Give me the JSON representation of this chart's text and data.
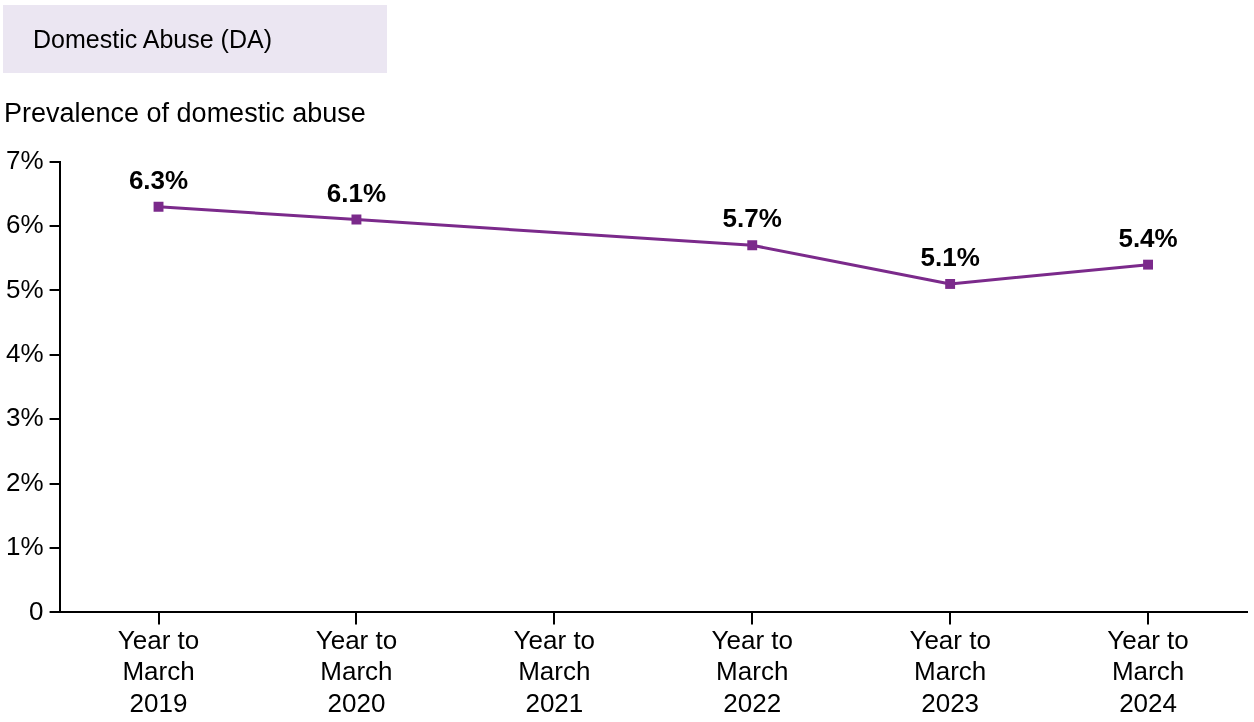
{
  "chart_data": {
    "type": "line",
    "title": "Domestic Abuse (DA)",
    "ylabel": "Prevalence of domestic abuse",
    "categories": [
      "Year to March 2019",
      "Year to March 2020",
      "Year to March 2021",
      "Year to March 2022",
      "Year to March 2023",
      "Year to March 2024"
    ],
    "series": [
      {
        "color": "#7b2a8b",
        "values": [
          6.3,
          6.1,
          null,
          5.7,
          5.1,
          5.4
        ],
        "value_labels": [
          "6.3%",
          "6.1%",
          null,
          "5.7%",
          "5.1%",
          "5.4%"
        ]
      }
    ],
    "ylim": [
      0,
      7
    ],
    "yticks": [
      {
        "value": 0,
        "label": "0"
      },
      {
        "value": 1,
        "label": "1%"
      },
      {
        "value": 2,
        "label": "2%"
      },
      {
        "value": 3,
        "label": "3%"
      },
      {
        "value": 4,
        "label": "4%"
      },
      {
        "value": 5,
        "label": "5%"
      },
      {
        "value": 6,
        "label": "6%"
      },
      {
        "value": 7,
        "label": "7%"
      }
    ],
    "marker": "square",
    "line_style": "solid",
    "grid": false,
    "legend": false
  }
}
